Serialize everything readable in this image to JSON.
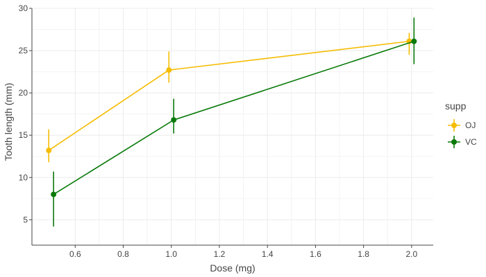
{
  "chart_data": {
    "type": "line",
    "xlabel": "Dose (mg)",
    "ylabel": "Tooth length (mm)",
    "xlim": [
      0.42,
      2.09
    ],
    "ylim": [
      2,
      30
    ],
    "x_ticks": [
      0.6,
      0.8,
      1.0,
      1.2,
      1.4,
      1.6,
      1.8,
      2.0
    ],
    "x_tick_labels": [
      "0.6",
      "0.8",
      "1.0",
      "1.2",
      "1.4",
      "1.6",
      "1.8",
      "2.0"
    ],
    "y_ticks": [
      5,
      10,
      15,
      20,
      25,
      30
    ],
    "y_tick_labels": [
      "5",
      "10",
      "15",
      "20",
      "25",
      "30"
    ],
    "grid": true,
    "legend": {
      "title": "supp",
      "position": "right"
    },
    "series": [
      {
        "name": "OJ",
        "color": "#f5bc00",
        "x": [
          0.49,
          0.99,
          1.99
        ],
        "y": [
          13.2,
          22.7,
          26.1
        ],
        "err_low": [
          11.8,
          21.2,
          24.5
        ],
        "err_high": [
          15.7,
          24.9,
          27.1
        ]
      },
      {
        "name": "VC",
        "color": "#0a7a0a",
        "x": [
          0.51,
          1.01,
          2.01
        ],
        "y": [
          8.0,
          16.8,
          26.1
        ],
        "err_low": [
          4.2,
          15.2,
          23.4
        ],
        "err_high": [
          10.7,
          19.3,
          28.9
        ]
      }
    ]
  }
}
